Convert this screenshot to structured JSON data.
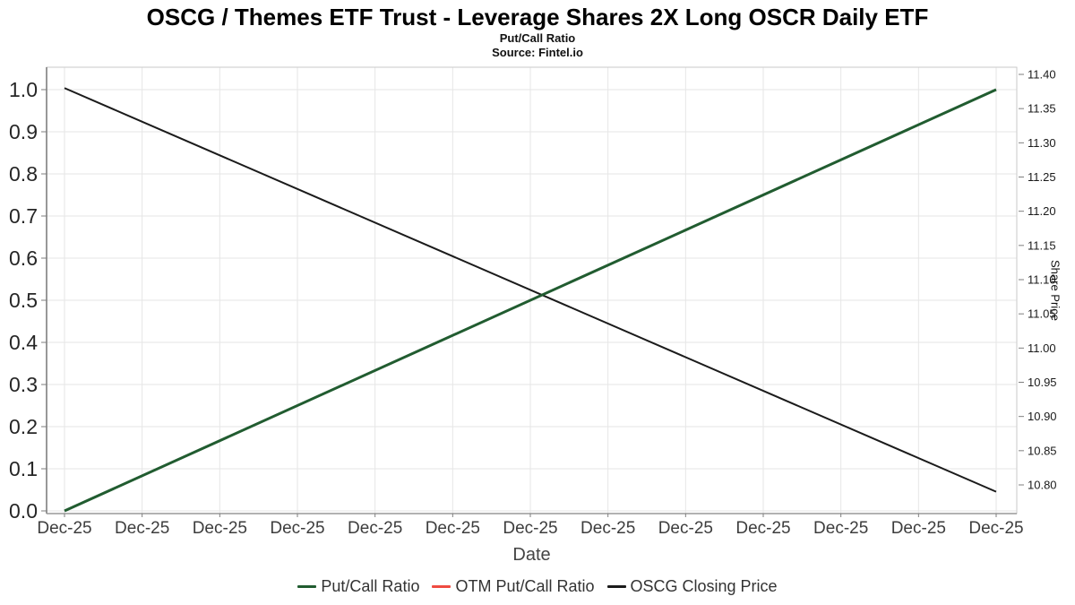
{
  "header": {
    "title": "OSCG / Themes ETF Trust - Leverage Shares 2X Long OSCR Daily ETF",
    "subtitle": "Put/Call Ratio",
    "source": "Source: Fintel.io"
  },
  "chart_data": {
    "type": "line",
    "title": "OSCG / Themes ETF Trust - Leverage Shares 2X Long OSCR Daily ETF",
    "subtitle": "Put/Call Ratio",
    "source": "Source: Fintel.io",
    "xlabel": "Date",
    "x_tick_labels": [
      "Dec-25",
      "Dec-25",
      "Dec-25",
      "Dec-25",
      "Dec-25",
      "Dec-25",
      "Dec-25",
      "Dec-25",
      "Dec-25",
      "Dec-25",
      "Dec-25",
      "Dec-25",
      "Dec-25"
    ],
    "left_axis": {
      "min": 0.0,
      "max": 1.0,
      "tick_step": 0.1,
      "grid": true,
      "ticks": [
        "0.0",
        "0.1",
        "0.2",
        "0.3",
        "0.4",
        "0.5",
        "0.6",
        "0.7",
        "0.8",
        "0.9",
        "1.0"
      ]
    },
    "right_axis": {
      "label": "Share Price",
      "min": 10.8,
      "max": 11.4,
      "tick_step": 0.05,
      "grid": false,
      "ticks": [
        "10.80",
        "10.85",
        "10.90",
        "10.95",
        "11.00",
        "11.05",
        "11.10",
        "11.15",
        "11.20",
        "11.25",
        "11.30",
        "11.35",
        "11.40"
      ]
    },
    "series": [
      {
        "name": "Put/Call Ratio",
        "color": "#215c30",
        "axis": "left",
        "width": 3,
        "points": [
          {
            "x": 0,
            "y": 0.0
          },
          {
            "x": 12,
            "y": 1.0
          }
        ]
      },
      {
        "name": "OTM Put/Call Ratio",
        "color": "#ef4b41",
        "axis": "left",
        "width": 2,
        "points": []
      },
      {
        "name": "OSCG Closing Price",
        "color": "#1b1b1b",
        "axis": "right",
        "width": 2,
        "points": [
          {
            "x": 0,
            "y": 11.38
          },
          {
            "x": 12,
            "y": 10.79
          }
        ]
      }
    ],
    "legend_position": "bottom",
    "colors": {
      "grid": "#e6e6e6",
      "plot_border": "#c9c9c9",
      "left_spine": "#777777",
      "bottom_spine": "#999999",
      "tick_mark": "#7e7e7e",
      "left_tick_label": "#262626",
      "right_tick_label": "#1a1a1a",
      "x_tick_label": "#3d3d3d"
    }
  }
}
